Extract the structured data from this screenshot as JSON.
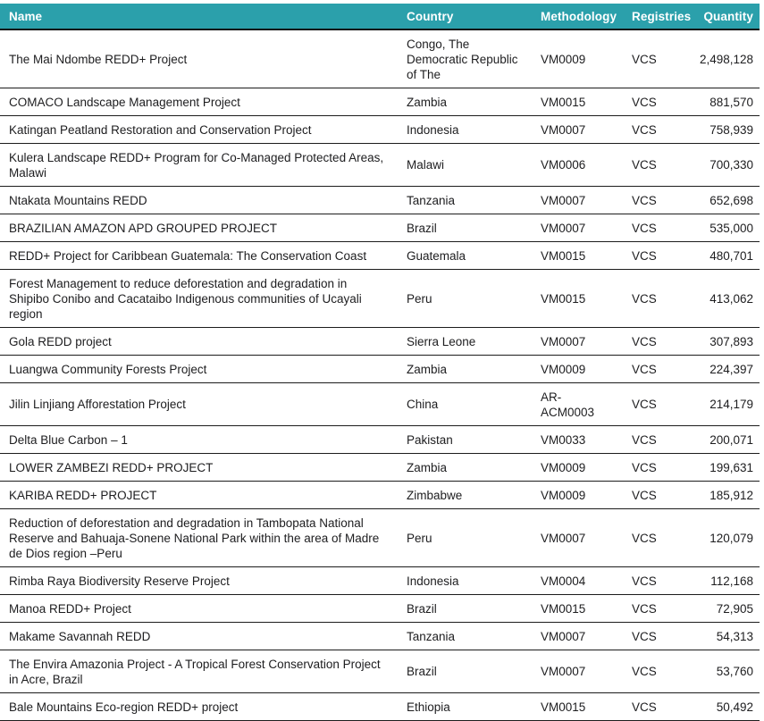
{
  "colors": {
    "header_background": "#2BA0AB",
    "header_text": "#ffffff",
    "body_text": "#1d1d1f",
    "row_border": "#1c1c1c"
  },
  "table": {
    "columns": [
      {
        "id": "name",
        "label": "Name"
      },
      {
        "id": "country",
        "label": "Country"
      },
      {
        "id": "methodology",
        "label": "Methodology"
      },
      {
        "id": "registries",
        "label": "Registries"
      },
      {
        "id": "quantity",
        "label": "Quantity"
      }
    ],
    "rows": [
      {
        "name": "The Mai Ndombe REDD+ Project",
        "country": "Congo, The Democratic Republic of The",
        "methodology": "VM0009",
        "registries": "VCS",
        "quantity": "2,498,128"
      },
      {
        "name": "COMACO Landscape Management Project",
        "country": "Zambia",
        "methodology": "VM0015",
        "registries": "VCS",
        "quantity": "881,570"
      },
      {
        "name": "Katingan Peatland Restoration and Conservation Project",
        "country": "Indonesia",
        "methodology": "VM0007",
        "registries": "VCS",
        "quantity": "758,939"
      },
      {
        "name": "Kulera Landscape REDD+ Program for Co-Managed Protected Areas, Malawi",
        "country": "Malawi",
        "methodology": "VM0006",
        "registries": "VCS",
        "quantity": "700,330"
      },
      {
        "name": "Ntakata Mountains REDD",
        "country": "Tanzania",
        "methodology": "VM0007",
        "registries": "VCS",
        "quantity": "652,698"
      },
      {
        "name": "BRAZILIAN AMAZON APD GROUPED PROJECT",
        "country": "Brazil",
        "methodology": "VM0007",
        "registries": "VCS",
        "quantity": "535,000"
      },
      {
        "name": "REDD+ Project for Caribbean Guatemala: The Conservation Coast",
        "country": "Guatemala",
        "methodology": "VM0015",
        "registries": "VCS",
        "quantity": "480,701"
      },
      {
        "name": "Forest Management to reduce deforestation and degradation in Shipibo Conibo and Cacataibo Indigenous communities of Ucayali region",
        "country": "Peru",
        "methodology": "VM0015",
        "registries": "VCS",
        "quantity": "413,062"
      },
      {
        "name": "Gola REDD project",
        "country": "Sierra Leone",
        "methodology": "VM0007",
        "registries": "VCS",
        "quantity": "307,893"
      },
      {
        "name": "Luangwa Community Forests Project",
        "country": "Zambia",
        "methodology": "VM0009",
        "registries": "VCS",
        "quantity": "224,397"
      },
      {
        "name": "Jilin Linjiang Afforestation Project",
        "country": "China",
        "methodology": "AR-ACM0003",
        "registries": "VCS",
        "quantity": "214,179"
      },
      {
        "name": "Delta Blue Carbon – 1",
        "country": "Pakistan",
        "methodology": "VM0033",
        "registries": "VCS",
        "quantity": "200,071"
      },
      {
        "name": "LOWER ZAMBEZI REDD+ PROJECT",
        "country": "Zambia",
        "methodology": "VM0009",
        "registries": "VCS",
        "quantity": "199,631"
      },
      {
        "name": "KARIBA REDD+ PROJECT",
        "country": "Zimbabwe",
        "methodology": "VM0009",
        "registries": "VCS",
        "quantity": "185,912"
      },
      {
        "name": "Reduction of deforestation and degradation in Tambopata National Reserve and Bahuaja-Sonene National Park within the area of Madre de Dios region –Peru",
        "country": "Peru",
        "methodology": "VM0007",
        "registries": "VCS",
        "quantity": "120,079"
      },
      {
        "name": "Rimba Raya Biodiversity Reserve Project",
        "country": "Indonesia",
        "methodology": "VM0004",
        "registries": "VCS",
        "quantity": "112,168"
      },
      {
        "name": "Manoa REDD+ Project",
        "country": "Brazil",
        "methodology": "VM0015",
        "registries": "VCS",
        "quantity": "72,905"
      },
      {
        "name": "Makame Savannah REDD",
        "country": "Tanzania",
        "methodology": "VM0007",
        "registries": "VCS",
        "quantity": "54,313"
      },
      {
        "name": "The Envira Amazonia Project - A Tropical Forest Conservation Project in Acre, Brazil",
        "country": "Brazil",
        "methodology": "VM0007",
        "registries": "VCS",
        "quantity": "53,760"
      },
      {
        "name": "Bale Mountains Eco-region REDD+ project",
        "country": "Ethiopia",
        "methodology": "VM0015",
        "registries": "VCS",
        "quantity": "50,492"
      }
    ]
  }
}
